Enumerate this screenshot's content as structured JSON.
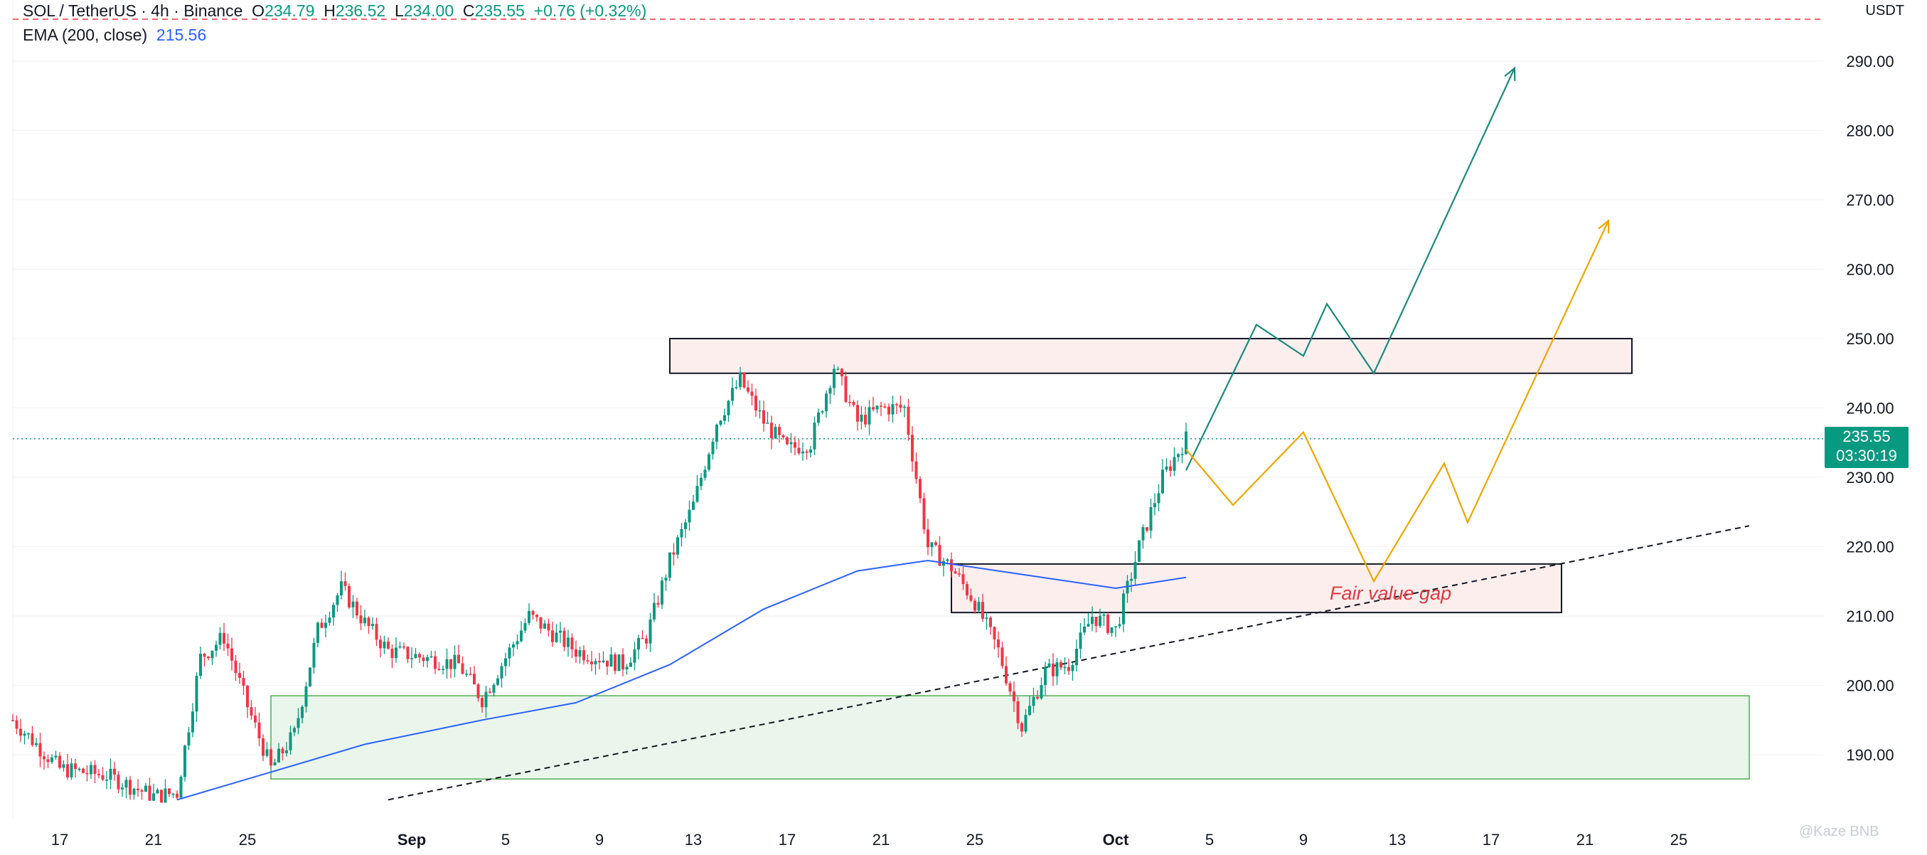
{
  "header": {
    "symbol": "SOL / TetherUS · 4h · Binance",
    "open_label": "O",
    "open": "234.79",
    "high_label": "H",
    "high": "236.52",
    "low_label": "L",
    "low": "234.00",
    "close_label": "C",
    "close": "235.55",
    "change": "+0.76 (+0.32%)",
    "ema_label": "EMA (200, close)",
    "ema_value": "215.56"
  },
  "currency": "USDT",
  "last_price": {
    "value": "235.55",
    "countdown": "03:30:19"
  },
  "annotation": "Fair value gap",
  "watermark": "@Kaze BNB",
  "colors": {
    "up": "#089981",
    "down": "#f23645",
    "ema": "#2962ff",
    "bull_path": "#1a8a7a",
    "alt_path": "#f0a500",
    "demand_zone": "#e8f5e9",
    "supply_zone": "#fdeaea"
  },
  "chart_data": {
    "type": "candlestick",
    "ylim": [
      183.5,
      300
    ],
    "y_ticks": [
      190,
      200,
      210,
      220,
      230,
      240,
      250,
      260,
      270,
      280,
      290
    ],
    "x_ticks": [
      "17",
      "21",
      "25",
      "Sep",
      "5",
      "9",
      "13",
      "17",
      "21",
      "25",
      "Oct",
      "5",
      "9",
      "13",
      "17",
      "21",
      "25"
    ],
    "ohlc_anchors": [
      [
        "Aug 15",
        195
      ],
      [
        "Aug 17",
        188
      ],
      [
        "Aug 19",
        187
      ],
      [
        "Aug 21",
        184
      ],
      [
        "Aug 22",
        184.5
      ],
      [
        "Aug 23",
        204
      ],
      [
        "Aug 24",
        207
      ],
      [
        "Aug 25",
        197
      ],
      [
        "Aug 26",
        188
      ],
      [
        "Aug 27",
        193
      ],
      [
        "Aug 28",
        208
      ],
      [
        "Aug 29",
        214
      ],
      [
        "Aug 30",
        209
      ],
      [
        "Aug 31",
        205
      ],
      [
        "Sep 2",
        203
      ],
      [
        "Sep 3",
        198
      ],
      [
        "Sep 5",
        210
      ],
      [
        "Sep 7",
        205
      ],
      [
        "Sep 9",
        203
      ],
      [
        "Sep 10",
        207
      ],
      [
        "Sep 11",
        218
      ],
      [
        "Sep 12",
        226
      ],
      [
        "Sep 13",
        238
      ],
      [
        "Sep 14",
        244
      ],
      [
        "Sep 15",
        238
      ],
      [
        "Sep 16",
        234
      ],
      [
        "Sep 17",
        235
      ],
      [
        "Sep 18",
        246
      ],
      [
        "Sep 19",
        238
      ],
      [
        "Sep 20",
        240
      ],
      [
        "Sep 21",
        240
      ],
      [
        "Sep 22",
        220
      ],
      [
        "Sep 23",
        217
      ],
      [
        "Sep 24",
        212
      ],
      [
        "Sep 25",
        205
      ],
      [
        "Sep 26",
        194
      ],
      [
        "Sep 27",
        202
      ],
      [
        "Sep 28",
        203
      ],
      [
        "Sep 29",
        210
      ],
      [
        "Sep 30",
        208
      ],
      [
        "Oct 1",
        220
      ],
      [
        "Oct 2",
        230
      ],
      [
        "Oct 3",
        235.55
      ]
    ],
    "ema_200": [
      [
        "Aug 22",
        183.5
      ],
      [
        "Aug 26",
        187.5
      ],
      [
        "Aug 30",
        191.5
      ],
      [
        "Sep 3",
        195
      ],
      [
        "Sep 7",
        197.5
      ],
      [
        "Sep 11",
        203
      ],
      [
        "Sep 15",
        211
      ],
      [
        "Sep 19",
        216.5
      ],
      [
        "Sep 22",
        218
      ],
      [
        "Sep 26",
        216
      ],
      [
        "Sep 30",
        214
      ],
      [
        "Oct 3",
        215.56
      ]
    ],
    "zones": [
      {
        "name": "supply",
        "from": "Sep 11",
        "to": "Oct 22",
        "low": 245,
        "high": 250
      },
      {
        "name": "fair-value-gap",
        "from": "Sep 23",
        "to": "Oct 19",
        "low": 210.5,
        "high": 217.5
      },
      {
        "name": "demand",
        "from": "Aug 26",
        "to": "Oct 27",
        "low": 186.5,
        "high": 198.5
      }
    ],
    "trendline": [
      [
        "Aug 31",
        183.5
      ],
      [
        "Oct 27",
        223
      ]
    ],
    "projections": [
      {
        "name": "bullish",
        "points": [
          [
            "Oct 3",
            231
          ],
          [
            "Oct 6",
            252
          ],
          [
            "Oct 8",
            247.5
          ],
          [
            "Oct 9",
            255
          ],
          [
            "Oct 11",
            245
          ],
          [
            "Oct 17",
            289
          ]
        ]
      },
      {
        "name": "alternate",
        "points": [
          [
            "Oct 3",
            234
          ],
          [
            "Oct 5",
            226
          ],
          [
            "Oct 8",
            236.5
          ],
          [
            "Oct 11",
            215
          ],
          [
            "Oct 14",
            232
          ],
          [
            "Oct 15",
            223.5
          ],
          [
            "Oct 21",
            267
          ]
        ]
      }
    ]
  }
}
